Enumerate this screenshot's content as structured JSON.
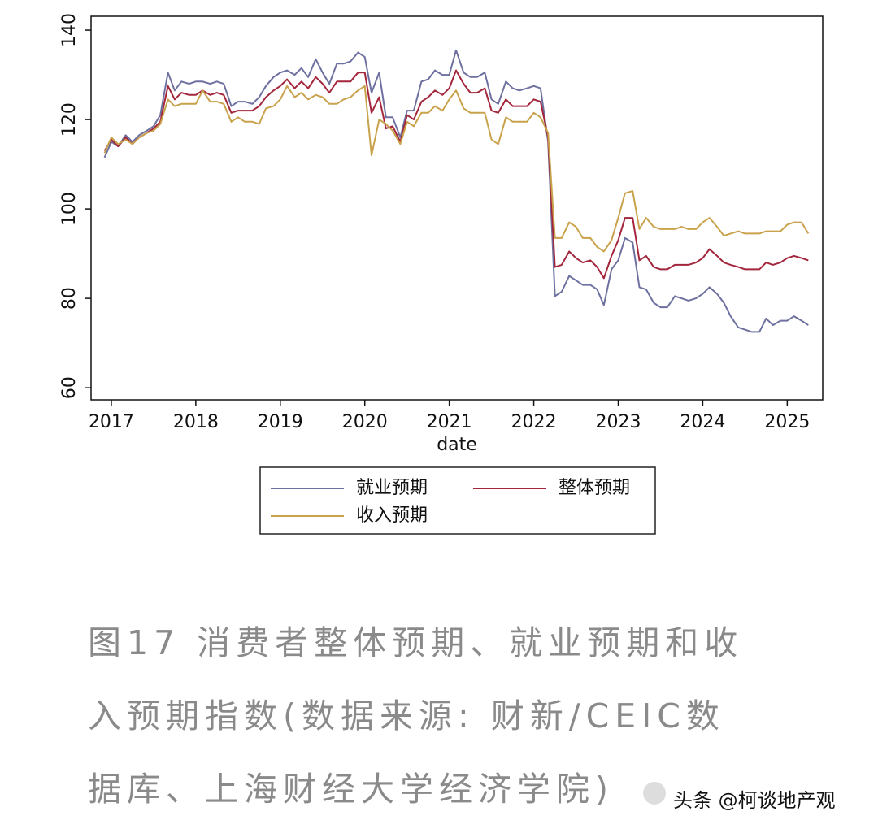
{
  "chart_data": {
    "type": "line",
    "x_label": "date",
    "x": [
      2016.92,
      2017.0,
      2017.08,
      2017.17,
      2017.25,
      2017.33,
      2017.42,
      2017.5,
      2017.58,
      2017.67,
      2017.75,
      2017.83,
      2017.92,
      2018.0,
      2018.08,
      2018.17,
      2018.25,
      2018.33,
      2018.42,
      2018.5,
      2018.58,
      2018.67,
      2018.75,
      2018.83,
      2018.92,
      2019.0,
      2019.08,
      2019.17,
      2019.25,
      2019.33,
      2019.42,
      2019.5,
      2019.58,
      2019.67,
      2019.75,
      2019.83,
      2019.92,
      2020.0,
      2020.08,
      2020.17,
      2020.25,
      2020.33,
      2020.42,
      2020.5,
      2020.58,
      2020.67,
      2020.75,
      2020.83,
      2020.92,
      2021.0,
      2021.08,
      2021.17,
      2021.25,
      2021.33,
      2021.42,
      2021.5,
      2021.58,
      2021.67,
      2021.75,
      2021.83,
      2021.92,
      2022.0,
      2022.08,
      2022.17,
      2022.25,
      2022.33,
      2022.42,
      2022.5,
      2022.58,
      2022.67,
      2022.75,
      2022.83,
      2022.92,
      2023.0,
      2023.08,
      2023.17,
      2023.25,
      2023.33,
      2023.42,
      2023.5,
      2023.58,
      2023.67,
      2023.75,
      2023.83,
      2023.92,
      2024.0,
      2024.08,
      2024.17,
      2024.25,
      2024.33,
      2024.42,
      2024.5,
      2024.58,
      2024.67,
      2024.75,
      2024.83,
      2024.92,
      2025.0,
      2025.08,
      2025.17,
      2025.25
    ],
    "series": [
      {
        "name": "就业预期",
        "color": "#6e71a0",
        "values": [
          111.5,
          115,
          114,
          116.5,
          115,
          116.5,
          117.5,
          118.5,
          121,
          130.5,
          126.5,
          128.5,
          128,
          128.5,
          128.5,
          128,
          128.5,
          128,
          123,
          124,
          124,
          123.5,
          125,
          127.5,
          129.5,
          130.5,
          131,
          130,
          131.5,
          129.5,
          133.5,
          130.5,
          128,
          132.5,
          132.5,
          133,
          135,
          134,
          126,
          130.5,
          120.5,
          120.5,
          116,
          122,
          122,
          128.5,
          129,
          131,
          130,
          130,
          135.5,
          130.5,
          129.5,
          129.5,
          130.5,
          124.5,
          123.5,
          128.5,
          127,
          126.5,
          127,
          127.5,
          127,
          115,
          80.5,
          81.5,
          85,
          84,
          83,
          83,
          82,
          78.5,
          86.5,
          88.5,
          93.5,
          92.5,
          82.5,
          82,
          79,
          78,
          78,
          80.5,
          80,
          79.5,
          80,
          81,
          82.5,
          81,
          79,
          76,
          73.5,
          73,
          72.5,
          72.5,
          75.5,
          74,
          75,
          75,
          76,
          75,
          74
        ]
      },
      {
        "name": "整体预期",
        "color": "#a3263c",
        "values": [
          113,
          115.5,
          114,
          116,
          114.5,
          116,
          117,
          118,
          119.5,
          127.5,
          124.5,
          126,
          125.5,
          125.5,
          126.5,
          125.5,
          126,
          125.5,
          121.5,
          122,
          122,
          122,
          123,
          125,
          126.5,
          127.5,
          129,
          127,
          128.5,
          127,
          129.5,
          128,
          126,
          128.5,
          128.5,
          128.5,
          130.5,
          130.5,
          121.5,
          125,
          118,
          118.5,
          115,
          121,
          120,
          124,
          125,
          126.5,
          125.5,
          127,
          131,
          128,
          126,
          126,
          127,
          122,
          121.5,
          124.5,
          123,
          123,
          123,
          124.5,
          124,
          116,
          87,
          87.5,
          90.5,
          89,
          88,
          88.5,
          87,
          84.5,
          89.5,
          93,
          98,
          98,
          88.5,
          89.5,
          87,
          86.5,
          86.5,
          87.5,
          87.5,
          87.5,
          88,
          89,
          91,
          89.5,
          88,
          87.5,
          87,
          86.5,
          86.5,
          86.5,
          88,
          87.5,
          88,
          89,
          89.5,
          89,
          88.5
        ]
      },
      {
        "name": "收入预期",
        "color": "#c9a24c",
        "values": [
          112.5,
          116,
          114.5,
          115.5,
          114.5,
          116,
          117,
          117.5,
          119,
          124.5,
          123,
          123.5,
          123.5,
          123.5,
          126.5,
          124,
          124,
          123.5,
          119.5,
          120.5,
          119.5,
          119.5,
          119,
          122.5,
          123,
          124.5,
          127.5,
          125,
          126,
          124.5,
          125.5,
          125,
          123.5,
          123.5,
          124.5,
          125,
          126.5,
          127.5,
          112,
          120,
          119,
          117.5,
          114.5,
          119.5,
          118.5,
          121.5,
          121.5,
          123,
          122,
          124.5,
          126.5,
          122.5,
          121.5,
          121.5,
          121.5,
          115.5,
          114.5,
          120.5,
          119.5,
          119.5,
          119.5,
          121.5,
          120.5,
          117,
          93.5,
          93.5,
          97,
          96,
          93.5,
          93.5,
          91.5,
          90.5,
          93,
          98,
          103.5,
          104,
          95.5,
          98,
          96,
          95.5,
          95.5,
          95.5,
          96,
          95.5,
          95.5,
          97,
          98,
          96,
          94,
          94.5,
          95,
          94.5,
          94.5,
          94.5,
          95,
          95,
          95,
          96.5,
          97,
          97,
          94.5
        ]
      }
    ],
    "xlim": [
      2016.76,
      2025.42
    ],
    "xticks": [
      2017,
      2018,
      2019,
      2020,
      2021,
      2022,
      2023,
      2024,
      2025
    ],
    "ylim": [
      57.3,
      143.1
    ],
    "yticks": [
      60,
      80,
      100,
      120,
      140
    ],
    "grid": false,
    "legend": "bottom"
  },
  "caption": {
    "lines": [
      "图17 消费者整体预期、就业预期和收",
      "入预期指数(数据来源: 财新/CEIC数",
      "据库、上海财经大学经济学院)"
    ]
  },
  "watermark": "头条 @柯谈地产观"
}
